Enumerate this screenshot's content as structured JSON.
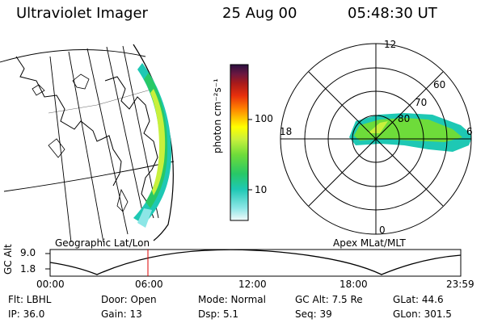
{
  "header": {
    "instrument": "Ultraviolet Imager",
    "date": "25 Aug 00",
    "time": "05:48:30 UT"
  },
  "left_panel": {
    "label": "Geographic Lat/Lon"
  },
  "colorbar": {
    "label": "photon cm⁻²s⁻¹",
    "ticks": [
      "100",
      "10"
    ],
    "colors": [
      "#3a1e5c",
      "#6b1740",
      "#a81a1a",
      "#e8300c",
      "#ff7f00",
      "#ffc000",
      "#ffff00",
      "#c8f03c",
      "#6edc3a",
      "#28c866",
      "#1ec8b4",
      "#8ce6e6",
      "#e6f5f5"
    ]
  },
  "polar_panel": {
    "label": "Apex MLat/MLT",
    "mlt_labels": {
      "top": "12",
      "left": "18",
      "right": "6",
      "bottom": "0"
    },
    "mlat_labels": [
      "60",
      "70",
      "80"
    ]
  },
  "timeline": {
    "ylabel": "GC Alt",
    "y_ticks": [
      "9.0",
      "1.8"
    ],
    "x_ticks": [
      "00:00",
      "06:00",
      "12:00",
      "18:00",
      "23:59"
    ],
    "current_time": "05:48:30"
  },
  "info": {
    "flt": "Flt: LBHL",
    "ip": "IP: 36.0",
    "door": "Door: Open",
    "gain": "Gain: 13",
    "mode": "Mode: Normal",
    "dsp": "Dsp:    5.1",
    "gc_alt": "GC Alt: 7.5 Re",
    "seq": "Seq: 39",
    "glat": "GLat:    44.6",
    "glon": "GLon: 301.5"
  }
}
